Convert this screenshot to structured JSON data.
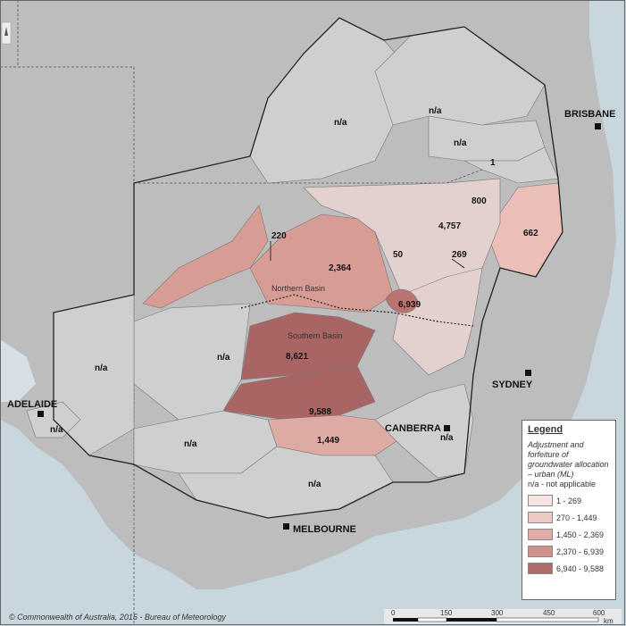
{
  "regions": [
    {
      "label": "n/a",
      "color": "#cfcfcf"
    },
    {
      "label": "n/a",
      "color": "#cfcfcf"
    },
    {
      "label": "n/a",
      "color": "#cfcfcf"
    },
    {
      "label": "1",
      "color": "#cfcfcf"
    },
    {
      "label": "800",
      "color": "#c98f8b"
    },
    {
      "label": "662",
      "color": "#ebbeb8"
    },
    {
      "label": "4,757",
      "color": "#b97470"
    },
    {
      "label": "50",
      "color": "#e3d1cf"
    },
    {
      "label": "269",
      "color": "#e3d1cf"
    },
    {
      "label": "220",
      "color": "#d79d94"
    },
    {
      "label": "2,364",
      "color": "#d79d94"
    },
    {
      "label": "6,939",
      "color": "#b97470"
    },
    {
      "label": "8,621",
      "color": "#a86564"
    },
    {
      "label": "9,588",
      "color": "#a86564"
    },
    {
      "label": "1,449",
      "color": "#ddaba4"
    },
    {
      "label": "n/a",
      "color": "#cfcfcf"
    },
    {
      "label": "n/a",
      "color": "#cfcfcf"
    },
    {
      "label": "n/a",
      "color": "#cfcfcf"
    },
    {
      "label": "n/a",
      "color": "#cfcfcf"
    },
    {
      "label": "n/a",
      "color": "#cfcfcf"
    },
    {
      "label": "n/a",
      "color": "#cfcfcf"
    }
  ],
  "basins": [
    "Northern Basin",
    "Southern Basin"
  ],
  "cities": [
    "BRISBANE",
    "SYDNEY",
    "CANBERRA",
    "MELBOURNE",
    "ADELAIDE"
  ],
  "legend": {
    "title": "Legend",
    "subtitle": "Adjustment and forfeiture of groundwater allocation – urban (ML)",
    "na_note": "n/a - not applicable",
    "classes": [
      {
        "label": "1 - 269",
        "color": "#f6e4e2"
      },
      {
        "label": "270 - 1,449",
        "color": "#efc9c4"
      },
      {
        "label": "1,450 - 2,369",
        "color": "#e1aca6"
      },
      {
        "label": "2,370 - 6,939",
        "color": "#cf918b"
      },
      {
        "label": "6,940 - 9,588",
        "color": "#b06c6b"
      }
    ]
  },
  "scale": {
    "ticks": [
      "0",
      "150",
      "300",
      "450",
      "600"
    ],
    "unit": "km"
  },
  "north_arrow": "north-arrow-icon",
  "copyright": "© Commonwealth of Australia, 2015 - Bureau of Meteorology",
  "colors": {
    "ocean": "#c8d6de",
    "land": "#bdbdbd",
    "outline": "#222222"
  }
}
